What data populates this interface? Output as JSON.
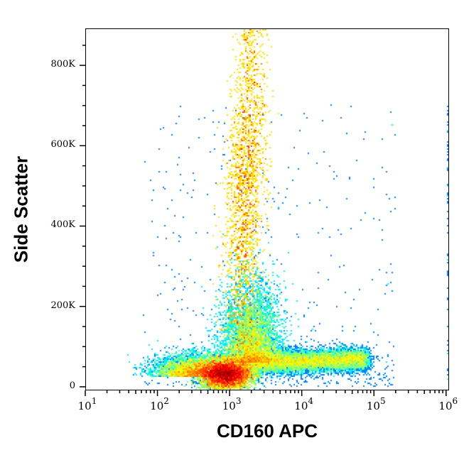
{
  "chart_data": {
    "type": "scatter",
    "subtype": "flow-cytometry-density-plot",
    "xlabel": "CD160 APC",
    "ylabel": "Side Scatter",
    "x_scale": "log",
    "xlim": [
      10,
      1100000
    ],
    "ylim": [
      -9000,
      892000
    ],
    "x_ticks": [
      {
        "exp": "1"
      },
      {
        "exp": "2"
      },
      {
        "exp": "3"
      },
      {
        "exp": "4"
      },
      {
        "exp": "5"
      },
      {
        "exp": "6"
      }
    ],
    "x_tick_base": "10",
    "y_ticks": [
      "0",
      "200K",
      "400K",
      "600K",
      "800K"
    ],
    "y_tick_values": [
      0,
      200000,
      400000,
      600000,
      800000
    ],
    "colormap": [
      "#0000ff",
      "#00ffff",
      "#00ff00",
      "#ffff00",
      "#ff0000"
    ],
    "populations": [
      {
        "x_center": 900,
        "y_center": 30000,
        "density": "highest"
      },
      {
        "x_center": 1800,
        "y_center": 500000,
        "y_range": [
          50000,
          890000
        ],
        "density": "medium"
      },
      {
        "x_range": [
          2500,
          80000
        ],
        "y_center": 60000,
        "density": "medium-low"
      }
    ]
  }
}
